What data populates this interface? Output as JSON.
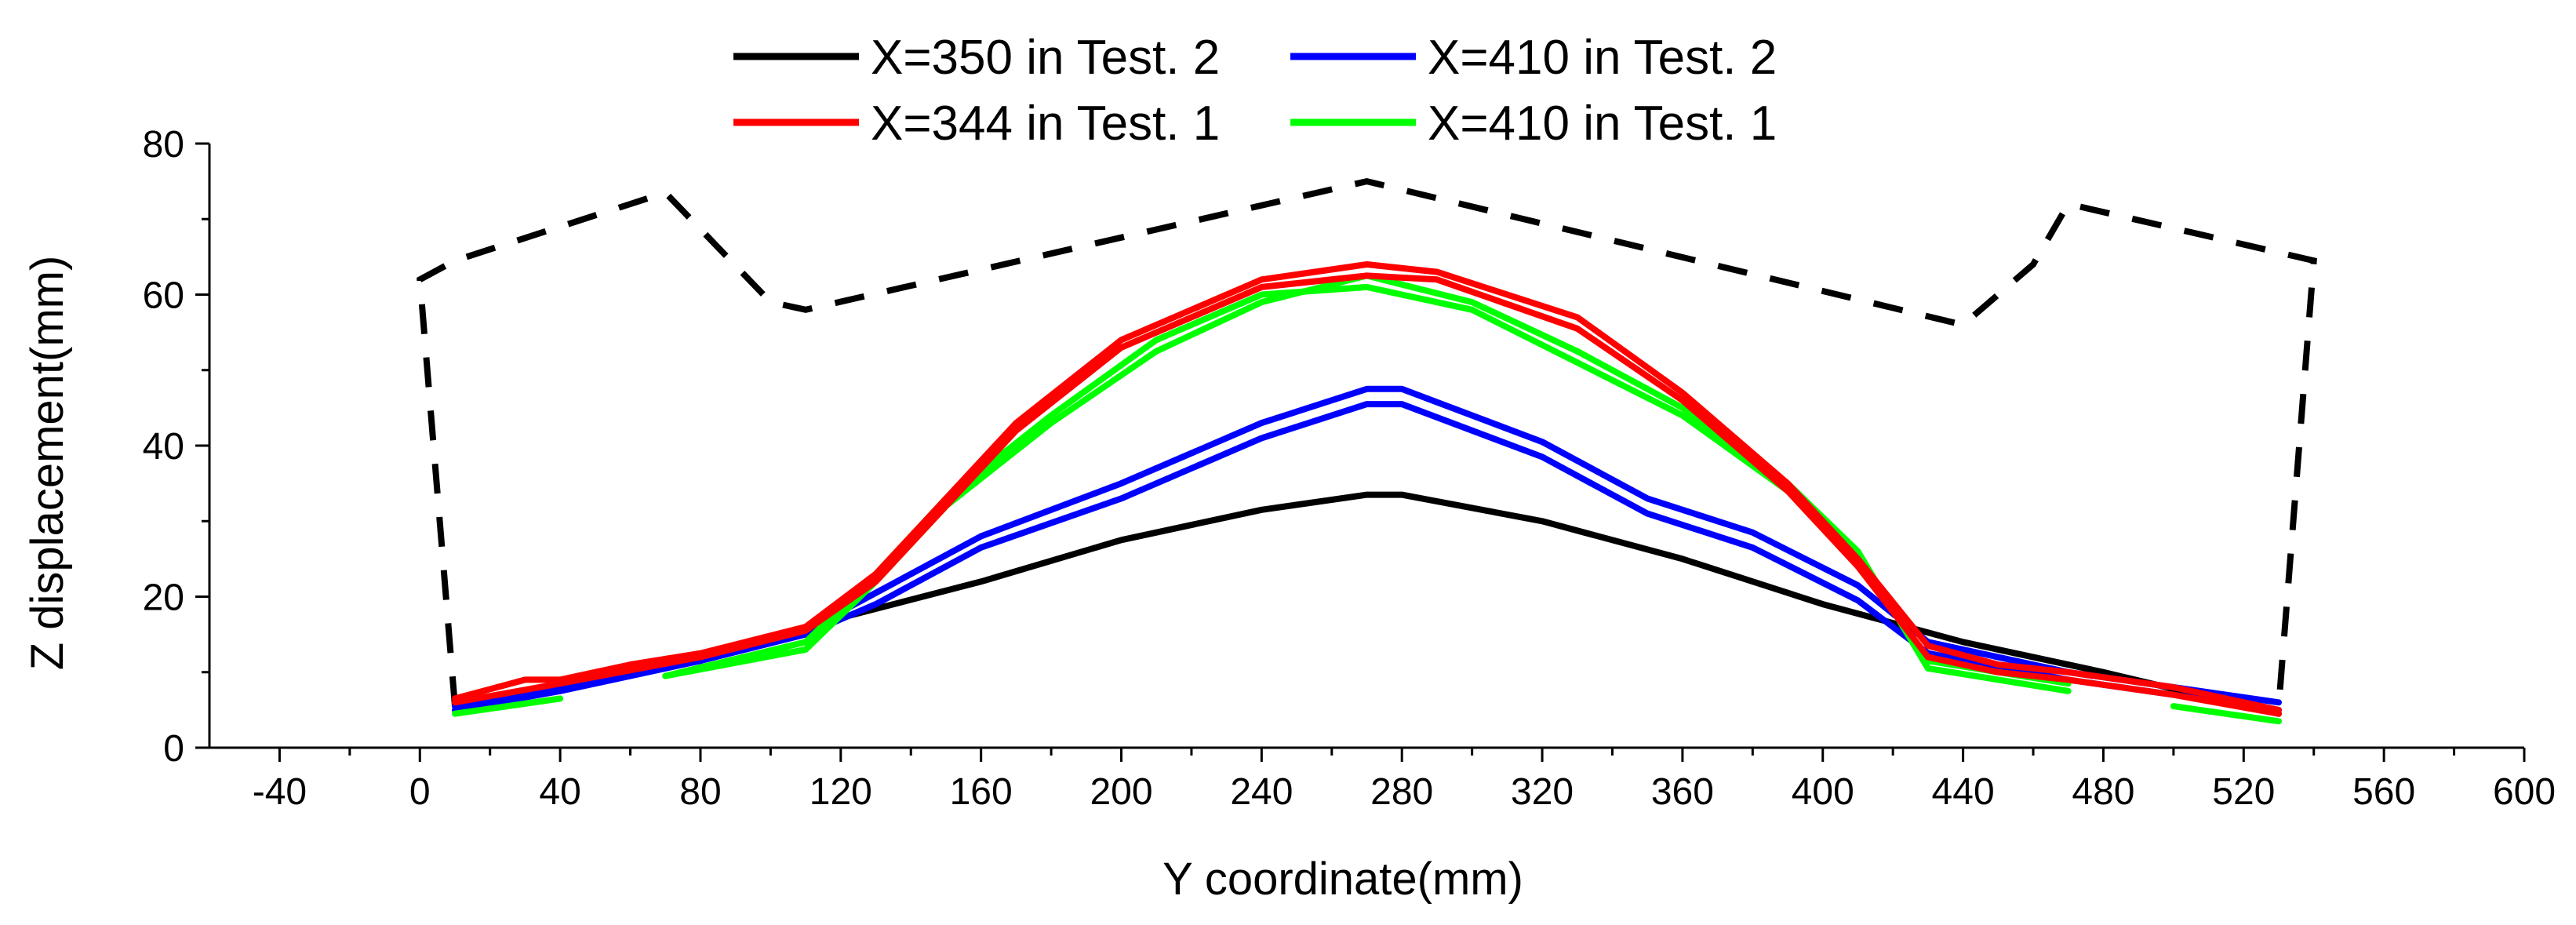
{
  "chart_data": {
    "type": "line",
    "title": "",
    "xlabel": "Y coordinate(mm)",
    "ylabel": "Z displacement(mm)",
    "xlim": [
      -60,
      600
    ],
    "ylim": [
      0,
      80
    ],
    "xticks": [
      -40,
      0,
      40,
      80,
      120,
      160,
      200,
      240,
      280,
      320,
      360,
      400,
      440,
      480,
      520,
      560,
      600
    ],
    "yticks": [
      0,
      20,
      40,
      60,
      80
    ],
    "legend_position": "top-center",
    "series": [
      {
        "name": "X=350 in Test. 2",
        "color": "#000000",
        "lines": [
          [
            [
              10,
              5.5
            ],
            [
              40,
              8
            ],
            [
              80,
              11.5
            ],
            [
              110,
              16
            ],
            [
              160,
              22
            ],
            [
              200,
              27.5
            ],
            [
              240,
              31.5
            ],
            [
              270,
              33.5
            ],
            [
              280,
              33.5
            ],
            [
              320,
              30
            ],
            [
              360,
              25
            ],
            [
              400,
              19
            ],
            [
              440,
              14
            ],
            [
              480,
              10
            ],
            [
              530,
              4.5
            ]
          ]
        ]
      },
      {
        "name": "X=410 in Test. 2",
        "color": "#0000ff",
        "lines": [
          [
            [
              10,
              5.5
            ],
            [
              40,
              8
            ],
            [
              80,
              12
            ],
            [
              110,
              15.5
            ],
            [
              130,
              20.5
            ],
            [
              160,
              28
            ],
            [
              200,
              35
            ],
            [
              240,
              43
            ],
            [
              270,
              47.5
            ],
            [
              280,
              47.5
            ],
            [
              320,
              40.5
            ],
            [
              350,
              33
            ],
            [
              380,
              28.5
            ],
            [
              410,
              21.5
            ],
            [
              430,
              14
            ],
            [
              470,
              10
            ],
            [
              500,
              8
            ],
            [
              530,
              6
            ]
          ],
          [
            [
              10,
              5
            ],
            [
              40,
              7.5
            ],
            [
              80,
              11.5
            ],
            [
              110,
              15
            ],
            [
              130,
              19
            ],
            [
              160,
              26.5
            ],
            [
              200,
              33
            ],
            [
              240,
              41
            ],
            [
              270,
              45.5
            ],
            [
              280,
              45.5
            ],
            [
              320,
              38.5
            ],
            [
              350,
              31
            ],
            [
              380,
              26.5
            ],
            [
              410,
              19.5
            ],
            [
              430,
              12.5
            ],
            [
              470,
              9
            ],
            [
              500,
              7
            ],
            [
              530,
              5
            ]
          ]
        ]
      },
      {
        "name": "X=344 in Test. 1",
        "color": "#ff0000",
        "lines": [
          [
            [
              10,
              6.5
            ],
            [
              30,
              9
            ],
            [
              40,
              9
            ],
            [
              60,
              11
            ],
            [
              80,
              12.5
            ],
            [
              110,
              16
            ],
            [
              130,
              23
            ],
            [
              150,
              33
            ],
            [
              170,
              43
            ],
            [
              200,
              54
            ],
            [
              240,
              62
            ],
            [
              270,
              64
            ],
            [
              290,
              63
            ],
            [
              330,
              57
            ],
            [
              360,
              47
            ],
            [
              390,
              35
            ],
            [
              410,
              25
            ],
            [
              430,
              13.5
            ],
            [
              450,
              11
            ],
            [
              470,
              10
            ],
            [
              500,
              8
            ],
            [
              530,
              5
            ]
          ],
          [
            [
              10,
              6
            ],
            [
              40,
              8.5
            ],
            [
              80,
              12
            ],
            [
              110,
              15.5
            ],
            [
              130,
              22
            ],
            [
              150,
              32
            ],
            [
              170,
              42
            ],
            [
              200,
              53
            ],
            [
              240,
              61
            ],
            [
              270,
              62.5
            ],
            [
              290,
              62
            ],
            [
              330,
              55.5
            ],
            [
              360,
              46
            ],
            [
              390,
              34
            ],
            [
              410,
              24
            ],
            [
              430,
              12
            ],
            [
              450,
              10
            ],
            [
              470,
              9
            ],
            [
              500,
              7
            ],
            [
              530,
              4.5
            ]
          ]
        ]
      },
      {
        "name": "X=410 in Test. 1",
        "color": "#00ff00",
        "segments": [
          [
            [
              10,
              4.5
            ],
            [
              40,
              6.5
            ]
          ],
          [
            [
              70,
              9.5
            ],
            [
              110,
              13
            ],
            [
              130,
              22
            ],
            [
              150,
              32
            ],
            [
              180,
              43
            ],
            [
              210,
              52.5
            ],
            [
              240,
              59
            ],
            [
              270,
              62.5
            ],
            [
              300,
              59
            ],
            [
              330,
              52.5
            ],
            [
              360,
              45
            ],
            [
              390,
              35
            ],
            [
              410,
              26
            ],
            [
              430,
              10.5
            ],
            [
              470,
              7.5
            ]
          ],
          [
            [
              500,
              5.5
            ],
            [
              530,
              3.5
            ]
          ]
        ],
        "extra": [
          [
            [
              70,
              9.5
            ],
            [
              110,
              14
            ],
            [
              130,
              23
            ],
            [
              150,
              33
            ],
            [
              180,
              44
            ],
            [
              210,
              54
            ],
            [
              240,
              60
            ],
            [
              270,
              61
            ],
            [
              300,
              58
            ],
            [
              330,
              51
            ],
            [
              360,
              44
            ],
            [
              390,
              34
            ],
            [
              410,
              25
            ],
            [
              430,
              11.5
            ],
            [
              470,
              8.5
            ]
          ]
        ]
      }
    ],
    "boundary": {
      "style": "dashed",
      "color": "#000000",
      "points": [
        [
          0,
          62
        ],
        [
          10,
          5.5
        ],
        [
          10,
          5.5
        ],
        [
          0,
          62
        ],
        [
          10,
          64.5
        ],
        [
          70,
          73.5
        ],
        [
          100,
          59
        ],
        [
          110,
          58
        ],
        [
          270,
          75
        ],
        [
          440,
          56
        ],
        [
          460,
          64
        ],
        [
          470,
          72
        ],
        [
          540,
          64.5
        ],
        [
          530,
          5.5
        ]
      ]
    }
  }
}
